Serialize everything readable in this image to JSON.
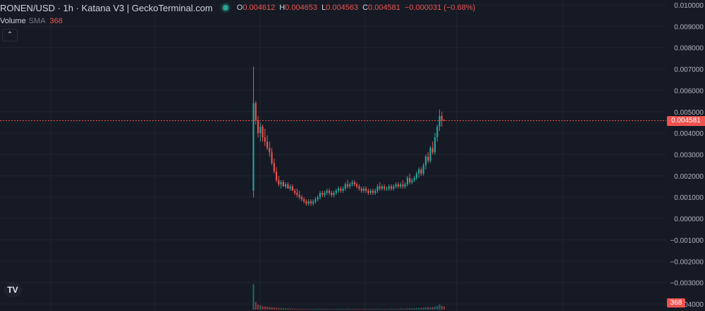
{
  "header": {
    "title": "RONEN/USD · 1h · Katana V3 | GeckoTerminal.com",
    "ohlc": [
      {
        "key": "O",
        "value": "0.004612"
      },
      {
        "key": "H",
        "value": "0.004653"
      },
      {
        "key": "L",
        "value": "0.004563"
      },
      {
        "key": "C",
        "value": "0.004581"
      }
    ],
    "change": "−0.000031 (−0.68%)"
  },
  "volume": {
    "label": "Volume",
    "sma_label": "SMA",
    "value": "368"
  },
  "collapse_icon": "chevron-up",
  "logo_text": "TV",
  "last_price_tag": "0.004581",
  "volume_tag": "368",
  "colors": {
    "up": "#26a69a",
    "down": "#ef5350",
    "background": "#161a25",
    "grid": "#1f2430",
    "axis_text": "#b2b5be"
  },
  "chart_data": {
    "type": "candlestick",
    "title": "RONEN/USD · 1h · Katana V3 | GeckoTerminal.com",
    "ylim": [
      -0.0041,
      0.0101
    ],
    "y_ticks": [
      "0.010000",
      "0.009000",
      "0.008000",
      "0.007000",
      "0.006000",
      "0.005000",
      "0.004000",
      "0.003000",
      "0.002000",
      "0.001000",
      "0.000000",
      "−0.001000",
      "−0.002000",
      "−0.003000",
      "−0.004000"
    ],
    "y_tick_values": [
      0.01,
      0.009,
      0.008,
      0.007,
      0.006,
      0.005,
      0.004,
      0.003,
      0.002,
      0.001,
      0.0,
      -0.001,
      -0.002,
      -0.003,
      -0.004
    ],
    "last_price": 0.004581,
    "grid": true,
    "candles": [
      [
        0.0013,
        0.0071,
        0.001,
        0.0054
      ],
      [
        0.0054,
        0.0055,
        0.0044,
        0.0046
      ],
      [
        0.0046,
        0.0048,
        0.0038,
        0.004
      ],
      [
        0.004,
        0.0045,
        0.0036,
        0.0043
      ],
      [
        0.0043,
        0.0044,
        0.0036,
        0.0038
      ],
      [
        0.0038,
        0.0042,
        0.0034,
        0.0036
      ],
      [
        0.0036,
        0.0039,
        0.0032,
        0.0033
      ],
      [
        0.0033,
        0.0036,
        0.0029,
        0.0031
      ],
      [
        0.0031,
        0.0033,
        0.0025,
        0.0026
      ],
      [
        0.0026,
        0.0028,
        0.0021,
        0.0022
      ],
      [
        0.0022,
        0.0024,
        0.0017,
        0.0018
      ],
      [
        0.0018,
        0.002,
        0.0015,
        0.0016
      ],
      [
        0.0016,
        0.0018,
        0.0014,
        0.0017
      ],
      [
        0.0017,
        0.0018,
        0.0015,
        0.0015
      ],
      [
        0.0015,
        0.0017,
        0.0014,
        0.0016
      ],
      [
        0.0016,
        0.0017,
        0.0014,
        0.0014
      ],
      [
        0.0014,
        0.0016,
        0.0013,
        0.0015
      ],
      [
        0.0015,
        0.0016,
        0.0013,
        0.0013
      ],
      [
        0.0013,
        0.0014,
        0.0011,
        0.0012
      ],
      [
        0.0012,
        0.0014,
        0.001,
        0.0011
      ],
      [
        0.0011,
        0.0013,
        0.0009,
        0.001
      ],
      [
        0.001,
        0.0011,
        0.0008,
        0.0009
      ],
      [
        0.0009,
        0.001,
        0.0007,
        0.0008
      ],
      [
        0.0008,
        0.0009,
        0.0006,
        0.0007
      ],
      [
        0.0007,
        0.0009,
        0.0006,
        0.0008
      ],
      [
        0.0008,
        0.0009,
        0.0006,
        0.0007
      ],
      [
        0.0007,
        0.0009,
        0.0006,
        0.0008
      ],
      [
        0.0008,
        0.001,
        0.0007,
        0.0009
      ],
      [
        0.0009,
        0.0011,
        0.0008,
        0.001
      ],
      [
        0.001,
        0.0013,
        0.0009,
        0.0012
      ],
      [
        0.0012,
        0.0013,
        0.001,
        0.0011
      ],
      [
        0.0011,
        0.0013,
        0.001,
        0.0012
      ],
      [
        0.0012,
        0.0014,
        0.0011,
        0.0013
      ],
      [
        0.0013,
        0.0014,
        0.0011,
        0.0012
      ],
      [
        0.0012,
        0.0013,
        0.001,
        0.0011
      ],
      [
        0.0011,
        0.0013,
        0.001,
        0.0012
      ],
      [
        0.0012,
        0.0014,
        0.0011,
        0.0013
      ],
      [
        0.0013,
        0.0015,
        0.0012,
        0.0014
      ],
      [
        0.0014,
        0.0015,
        0.0012,
        0.0013
      ],
      [
        0.0013,
        0.0015,
        0.0012,
        0.0014
      ],
      [
        0.0014,
        0.0017,
        0.0013,
        0.0016
      ],
      [
        0.0016,
        0.0018,
        0.0014,
        0.0015
      ],
      [
        0.0015,
        0.0017,
        0.0014,
        0.0016
      ],
      [
        0.0016,
        0.0018,
        0.0015,
        0.0017
      ],
      [
        0.0017,
        0.0018,
        0.0015,
        0.0016
      ],
      [
        0.0016,
        0.0017,
        0.0014,
        0.0015
      ],
      [
        0.0015,
        0.0016,
        0.0013,
        0.0014
      ],
      [
        0.0014,
        0.0015,
        0.0012,
        0.0013
      ],
      [
        0.0013,
        0.0015,
        0.0012,
        0.0014
      ],
      [
        0.0014,
        0.0015,
        0.0012,
        0.0013
      ],
      [
        0.0013,
        0.0014,
        0.0011,
        0.0012
      ],
      [
        0.0012,
        0.0014,
        0.0011,
        0.0013
      ],
      [
        0.0013,
        0.0014,
        0.0011,
        0.0012
      ],
      [
        0.0012,
        0.0014,
        0.0011,
        0.0013
      ],
      [
        0.0013,
        0.0016,
        0.0012,
        0.0015
      ],
      [
        0.0015,
        0.0017,
        0.0013,
        0.0014
      ],
      [
        0.0014,
        0.0016,
        0.0013,
        0.0015
      ],
      [
        0.0015,
        0.0016,
        0.0013,
        0.0014
      ],
      [
        0.0014,
        0.0015,
        0.0013,
        0.0014
      ],
      [
        0.0014,
        0.0016,
        0.0013,
        0.0015
      ],
      [
        0.0015,
        0.0016,
        0.0013,
        0.0014
      ],
      [
        0.0014,
        0.0016,
        0.0013,
        0.0015
      ],
      [
        0.0015,
        0.0017,
        0.0014,
        0.0016
      ],
      [
        0.0016,
        0.0017,
        0.0014,
        0.0015
      ],
      [
        0.0015,
        0.0017,
        0.0014,
        0.0016
      ],
      [
        0.0016,
        0.0018,
        0.0014,
        0.0015
      ],
      [
        0.0015,
        0.0017,
        0.0014,
        0.0016
      ],
      [
        0.0016,
        0.002,
        0.0015,
        0.0019
      ],
      [
        0.0019,
        0.0021,
        0.0016,
        0.0017
      ],
      [
        0.0017,
        0.0019,
        0.0016,
        0.0018
      ],
      [
        0.0018,
        0.002,
        0.0017,
        0.0019
      ],
      [
        0.0019,
        0.0022,
        0.0018,
        0.0021
      ],
      [
        0.0021,
        0.0024,
        0.0019,
        0.0023
      ],
      [
        0.0023,
        0.0024,
        0.002,
        0.0021
      ],
      [
        0.0021,
        0.0026,
        0.002,
        0.0025
      ],
      [
        0.0025,
        0.003,
        0.0023,
        0.0029
      ],
      [
        0.0029,
        0.0031,
        0.0026,
        0.0027
      ],
      [
        0.0027,
        0.0034,
        0.0026,
        0.0033
      ],
      [
        0.0033,
        0.0036,
        0.003,
        0.0031
      ],
      [
        0.0031,
        0.004,
        0.003,
        0.0038
      ],
      [
        0.0038,
        0.0044,
        0.0036,
        0.0043
      ],
      [
        0.0043,
        0.0051,
        0.0041,
        0.0048
      ],
      [
        0.0048,
        0.005,
        0.0043,
        0.0046
      ],
      [
        0.0046,
        0.004653,
        0.004563,
        0.004581
      ]
    ],
    "volume": [
      3000,
      900,
      600,
      500,
      400,
      380,
      350,
      300,
      280,
      250,
      220,
      200,
      180,
      160,
      150,
      140,
      130,
      120,
      110,
      100,
      95,
      90,
      85,
      80,
      90,
      85,
      80,
      95,
      110,
      100,
      90,
      80,
      85,
      75,
      70,
      80,
      90,
      100,
      85,
      80,
      95,
      110,
      100,
      90,
      80,
      75,
      70,
      85,
      95,
      80,
      75,
      70,
      80,
      90,
      110,
      100,
      90,
      85,
      80,
      95,
      100,
      110,
      95,
      90,
      100,
      120,
      110,
      130,
      150,
      140,
      160,
      180,
      200,
      190,
      220,
      260,
      280,
      250,
      300,
      350,
      420,
      600,
      450,
      368
    ]
  }
}
